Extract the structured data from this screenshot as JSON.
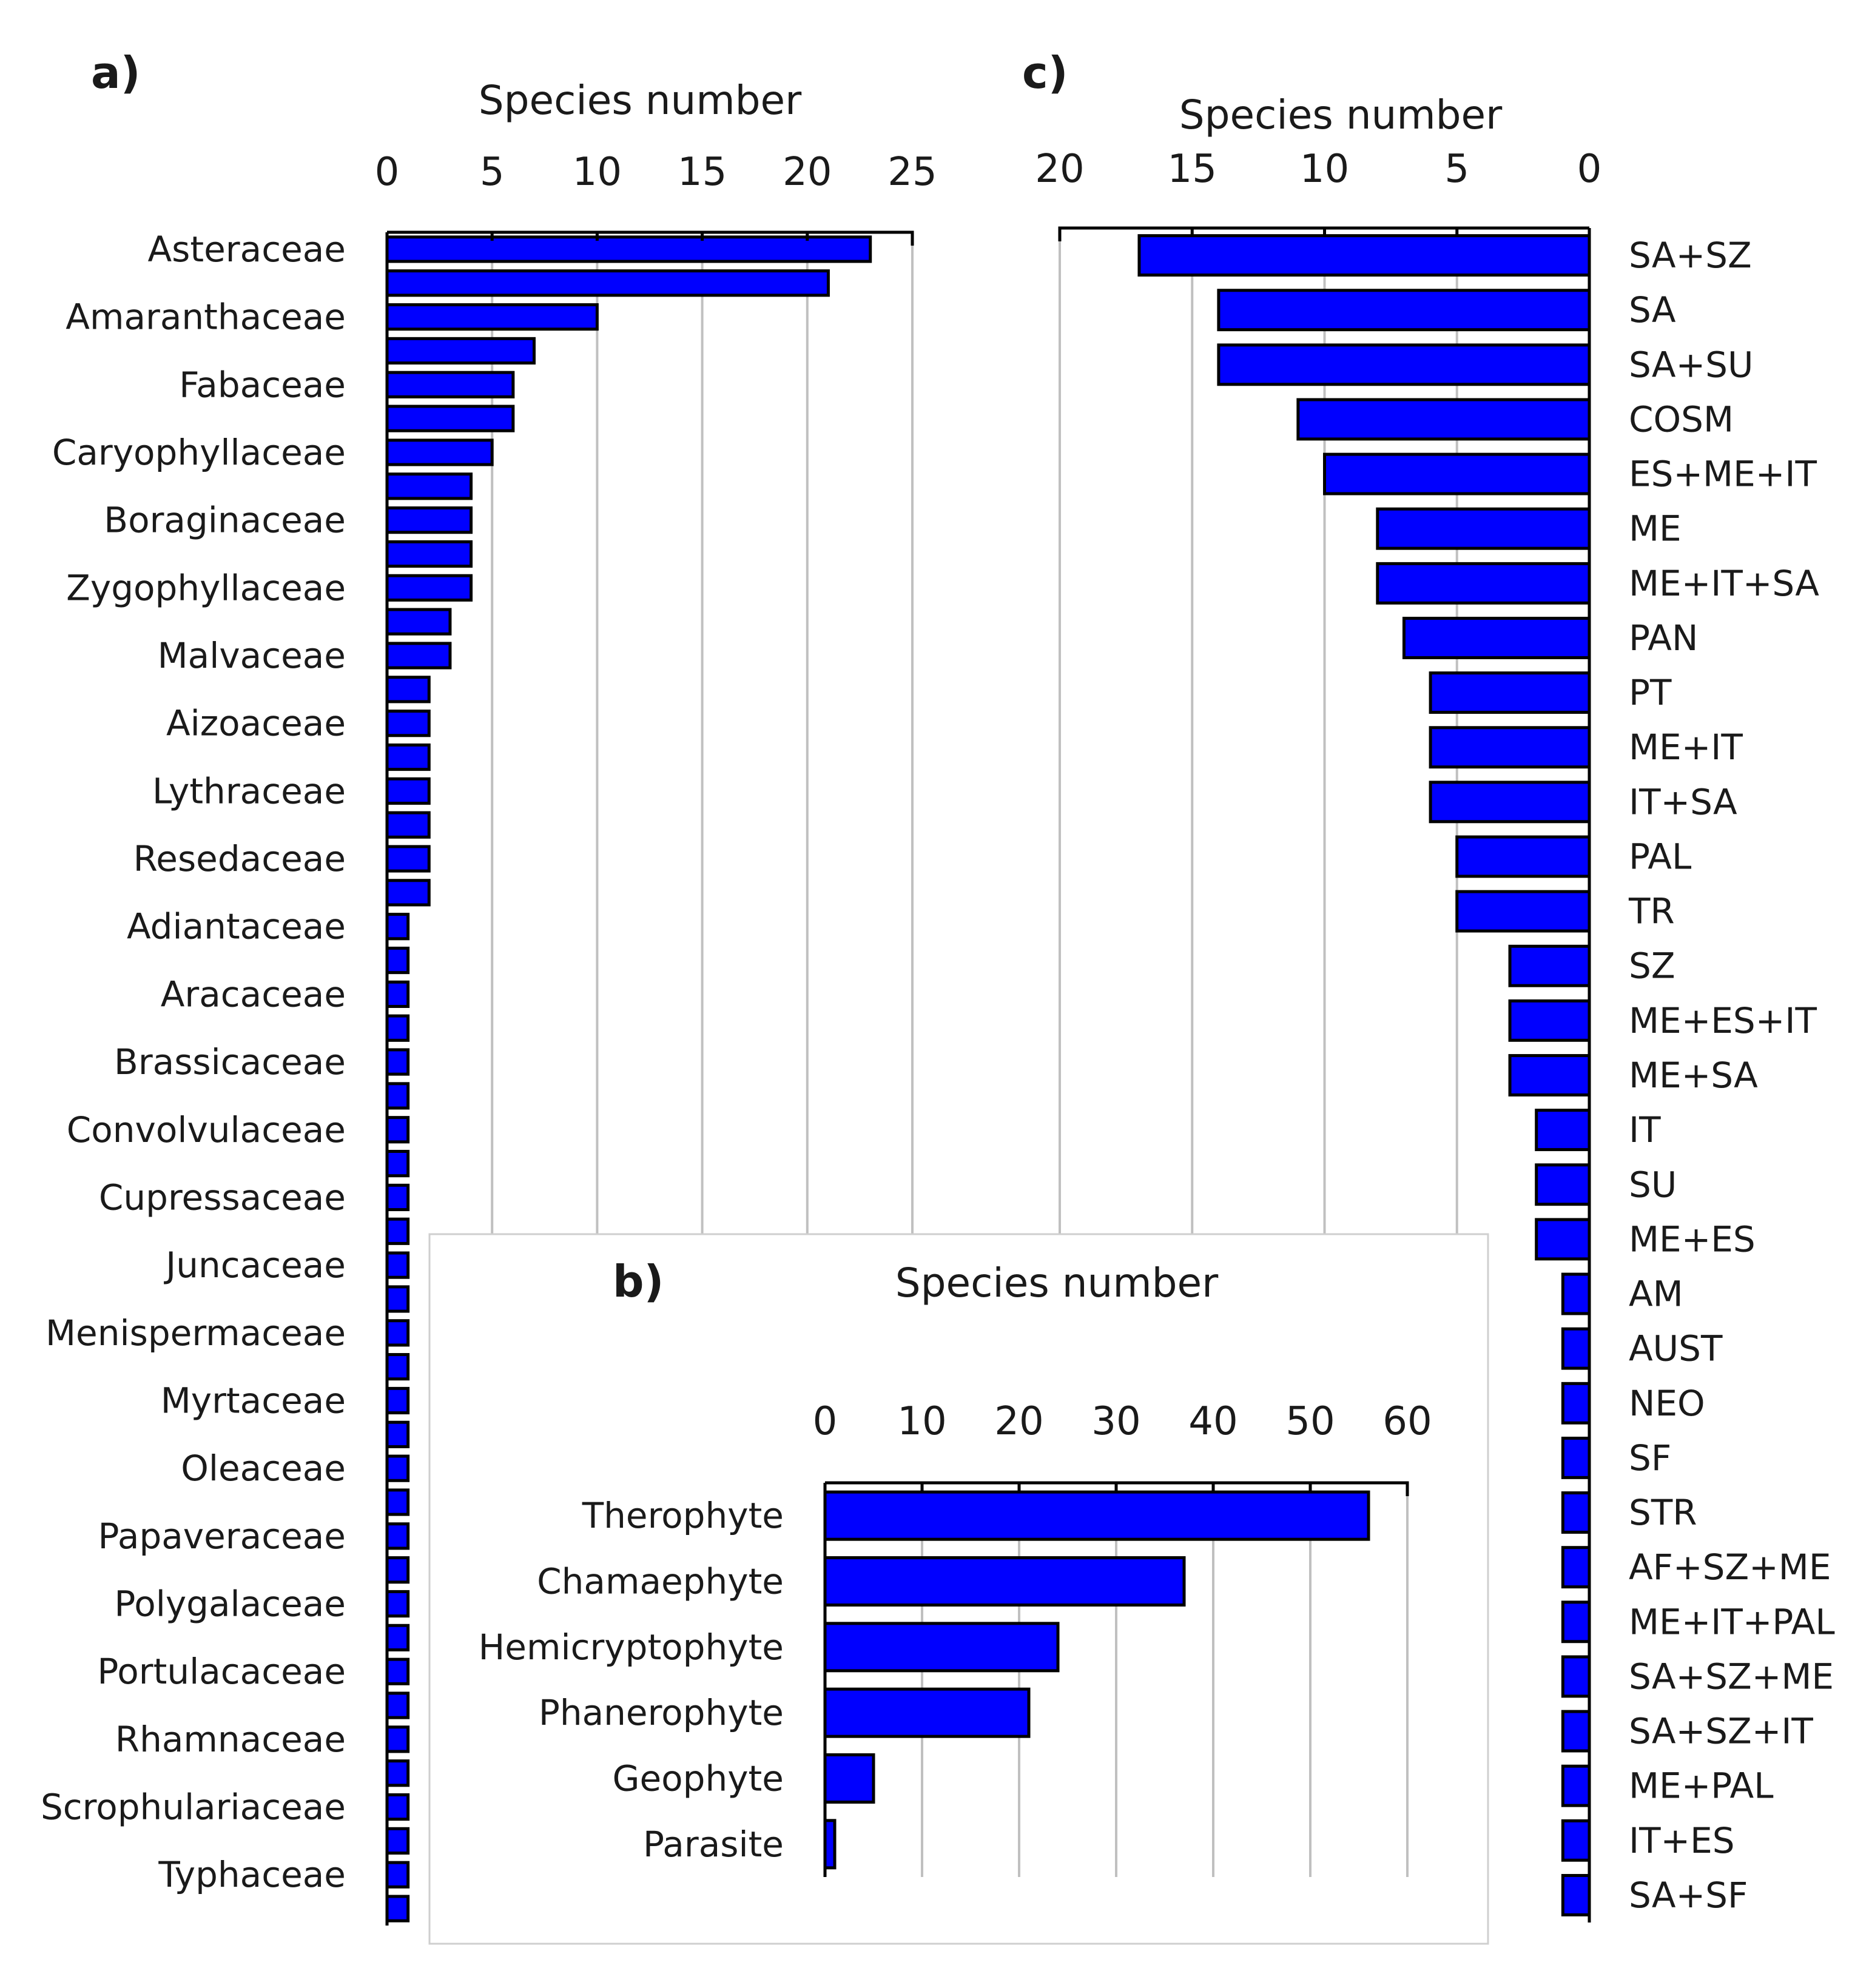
{
  "colors": {
    "bar": "#0000ff",
    "bar_edge": "#000000",
    "grid": "#c0c0c0"
  },
  "chart_data": [
    {
      "id": "a",
      "type": "bar",
      "orientation": "horizontal",
      "panel_label": "a)",
      "xlabel": "Species number",
      "xlim": [
        0,
        25
      ],
      "xticks": [
        0,
        5,
        10,
        15,
        20,
        25
      ],
      "xtick_labels": [
        "0",
        "5",
        "10",
        "15",
        "20",
        "25"
      ],
      "category_labels": [
        "Asteraceae",
        "Amaranthaceae",
        "Fabaceae",
        "Caryophyllaceae",
        "Boraginaceae",
        "Zygophyllaceae",
        "Malvaceae",
        "Aizoaceae",
        "Lythraceae",
        "Resedaceae",
        "Adiantaceae",
        "Aracaceae",
        "Brassicaceae",
        "Convolvulaceae",
        "Cupressaceae",
        "Juncaceae",
        "Menispermaceae",
        "Myrtaceae",
        "Oleaceae",
        "Papaveraceae",
        "Polygalaceae",
        "Portulacaceae",
        "Rhamnaceae",
        "Scrophulariaceae",
        "Typhaceae"
      ],
      "values": [
        23,
        21,
        10,
        7,
        6,
        6,
        5,
        4,
        4,
        4,
        4,
        3,
        3,
        2,
        2,
        2,
        2,
        2,
        2,
        2,
        1,
        1,
        1,
        1,
        1,
        1,
        1,
        1,
        1,
        1,
        1,
        1,
        1,
        1,
        1,
        1,
        1,
        1,
        1,
        1,
        1,
        1,
        1,
        1,
        1,
        1,
        1,
        1,
        1,
        1
      ],
      "label_every": 2
    },
    {
      "id": "b",
      "type": "bar",
      "orientation": "horizontal",
      "panel_label": "b)",
      "xlabel": "Species number",
      "xlim": [
        0,
        60
      ],
      "xticks": [
        0,
        10,
        20,
        30,
        40,
        50,
        60
      ],
      "xtick_labels": [
        "0",
        "10",
        "20",
        "30",
        "40",
        "50",
        "60"
      ],
      "categories": [
        "Therophyte",
        "Chamaephyte",
        "Hemicryptophyte",
        "Phanerophyte",
        "Geophyte",
        "Parasite"
      ],
      "values": [
        56,
        37,
        24,
        21,
        5,
        1
      ]
    },
    {
      "id": "c",
      "type": "bar",
      "orientation": "horizontal",
      "reversed_x": true,
      "panel_label": "c)",
      "xlabel": "Species number",
      "xlim": [
        0,
        20
      ],
      "xticks": [
        20,
        15,
        10,
        5,
        0
      ],
      "xtick_labels": [
        "20",
        "15",
        "10",
        "5",
        "0"
      ],
      "categories": [
        "SA+SZ",
        "SA",
        "SA+SU",
        "COSM",
        "ES+ME+IT",
        "ME",
        "ME+IT+SA",
        "PAN",
        "PT",
        "ME+IT",
        "IT+SA",
        "PAL",
        "TR",
        "SZ",
        "ME+ES+IT",
        "ME+SA",
        "IT",
        "SU",
        "ME+ES",
        "AM",
        "AUST",
        "NEO",
        "SF",
        "STR",
        "AF+SZ+ME",
        "ME+IT+PAL",
        "SA+SZ+ME",
        "SA+SZ+IT",
        "ME+PAL",
        "IT+ES",
        "SA+SF"
      ],
      "values": [
        17,
        14,
        14,
        11,
        10,
        8,
        8,
        7,
        6,
        6,
        6,
        5,
        5,
        3,
        3,
        3,
        2,
        2,
        2,
        1,
        1,
        1,
        1,
        1,
        1,
        1,
        1,
        1,
        1,
        1,
        1
      ]
    }
  ]
}
